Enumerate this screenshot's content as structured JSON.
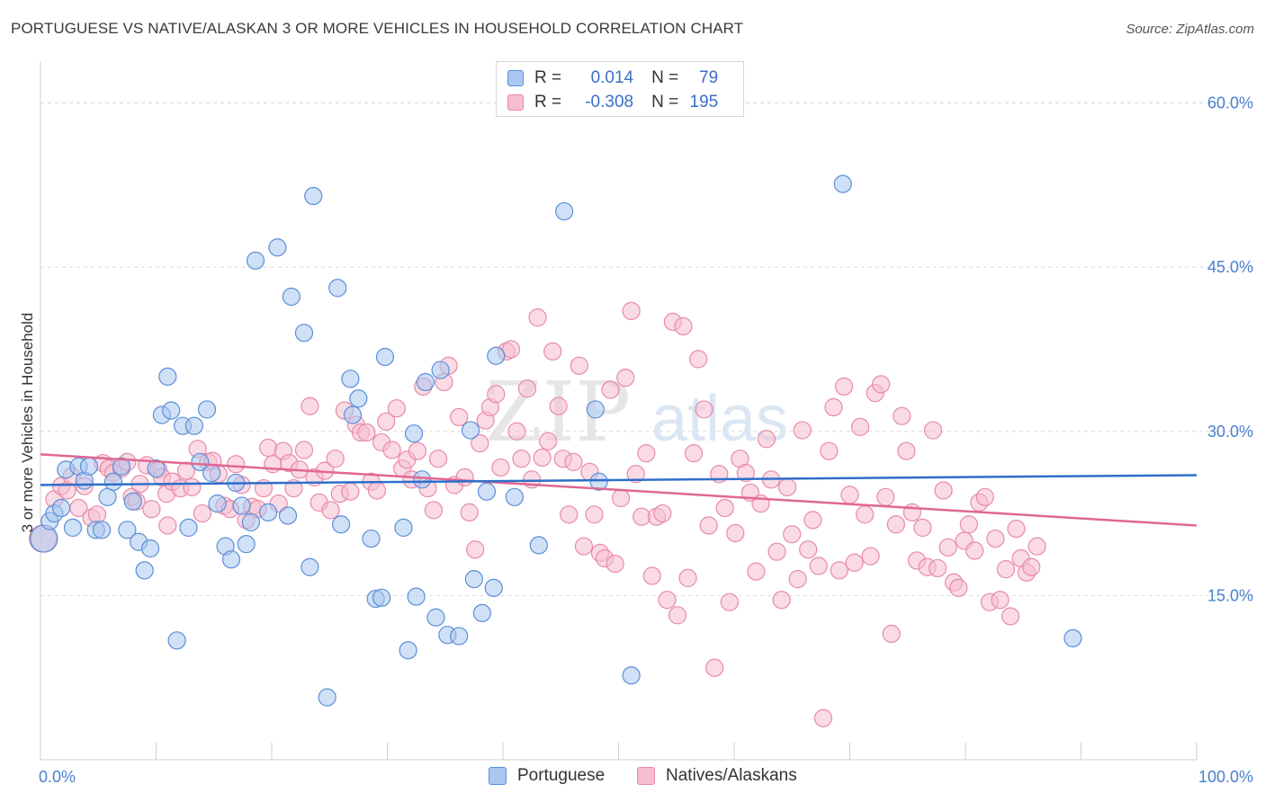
{
  "title": "PORTUGUESE VS NATIVE/ALASKAN 3 OR MORE VEHICLES IN HOUSEHOLD CORRELATION CHART",
  "source": "Source: ZipAtlas.com",
  "watermark": {
    "zip": "ZIP",
    "atlas": "atlas"
  },
  "legend_top": {
    "r_label": "R =",
    "n_label": "N =",
    "rows": [
      {
        "r": "0.014",
        "n": "79",
        "color": "#a9c7f0",
        "border": "#5b8fd6"
      },
      {
        "r": "-0.308",
        "n": "195",
        "color": "#f6bdd0",
        "border": "#e88aa8"
      }
    ]
  },
  "bottom_legend": [
    {
      "label": "Portuguese",
      "color": "#a9c7f0",
      "border": "#5b8fd6"
    },
    {
      "label": "Natives/Alaskans",
      "color": "#f6bdd0",
      "border": "#e88aa8"
    }
  ],
  "colors": {
    "blue_fill": "#a9c7f0",
    "blue_stroke": "#5b8fd6",
    "blue_line": "#2e6fca",
    "pink_fill": "#f6bdd0",
    "pink_stroke": "#e88aa8",
    "pink_line": "#e06892",
    "tick_label": "#4a7fd0",
    "grid": "#d9d9d9"
  },
  "chart_data": {
    "type": "scatter",
    "title": "PORTUGUESE VS NATIVE/ALASKAN 3 OR MORE VEHICLES IN HOUSEHOLD CORRELATION CHART",
    "xlabel": "",
    "ylabel": "3 or more Vehicles in Household",
    "xlim": [
      0,
      100
    ],
    "ylim": [
      0,
      63
    ],
    "x_tick_labels": [
      "0.0%",
      "100.0%"
    ],
    "y_ticks": [
      15,
      30,
      45,
      60
    ],
    "y_tick_labels": [
      "15.0%",
      "30.0%",
      "45.0%",
      "60.0%"
    ],
    "grid": "horizontal dashed",
    "legend_position": "top-center",
    "series": [
      {
        "name": "Portuguese",
        "r": 0.014,
        "n": 79,
        "trend": {
          "x": [
            0,
            100
          ],
          "y": [
            25.1,
            26.0
          ]
        },
        "points": [
          [
            0.3,
            20.2
          ],
          [
            0.8,
            21.8
          ],
          [
            1.2,
            22.5
          ],
          [
            1.8,
            23.0
          ],
          [
            2.2,
            26.5
          ],
          [
            2.8,
            21.2
          ],
          [
            3.3,
            26.8
          ],
          [
            3.8,
            25.5
          ],
          [
            4.2,
            26.8
          ],
          [
            4.8,
            21.0
          ],
          [
            5.3,
            21.0
          ],
          [
            5.8,
            24.0
          ],
          [
            6.3,
            25.4
          ],
          [
            7.0,
            26.8
          ],
          [
            7.5,
            21.0
          ],
          [
            8.0,
            23.6
          ],
          [
            8.5,
            19.9
          ],
          [
            9.0,
            17.3
          ],
          [
            9.5,
            19.3
          ],
          [
            10.0,
            26.6
          ],
          [
            10.5,
            31.5
          ],
          [
            11.0,
            35.0
          ],
          [
            11.3,
            31.9
          ],
          [
            11.8,
            10.9
          ],
          [
            12.3,
            30.5
          ],
          [
            12.8,
            21.2
          ],
          [
            13.3,
            30.5
          ],
          [
            13.8,
            27.2
          ],
          [
            14.4,
            32.0
          ],
          [
            14.8,
            26.2
          ],
          [
            15.3,
            23.4
          ],
          [
            16.0,
            19.5
          ],
          [
            16.5,
            18.3
          ],
          [
            16.9,
            25.3
          ],
          [
            17.4,
            23.2
          ],
          [
            17.8,
            19.7
          ],
          [
            18.2,
            21.7
          ],
          [
            18.6,
            45.6
          ],
          [
            19.7,
            22.6
          ],
          [
            20.5,
            46.8
          ],
          [
            21.4,
            22.3
          ],
          [
            21.7,
            42.3
          ],
          [
            22.8,
            39.0
          ],
          [
            23.3,
            17.6
          ],
          [
            23.6,
            51.5
          ],
          [
            24.8,
            5.7
          ],
          [
            25.7,
            43.1
          ],
          [
            26.0,
            21.5
          ],
          [
            26.8,
            34.8
          ],
          [
            27.0,
            31.5
          ],
          [
            27.5,
            33.0
          ],
          [
            28.6,
            20.2
          ],
          [
            29.0,
            14.7
          ],
          [
            29.5,
            14.8
          ],
          [
            29.8,
            36.8
          ],
          [
            31.4,
            21.2
          ],
          [
            31.8,
            10.0
          ],
          [
            32.3,
            29.8
          ],
          [
            32.5,
            14.9
          ],
          [
            33.0,
            25.6
          ],
          [
            33.3,
            34.5
          ],
          [
            34.2,
            13.0
          ],
          [
            34.6,
            35.6
          ],
          [
            35.2,
            11.4
          ],
          [
            36.2,
            11.3
          ],
          [
            37.2,
            30.1
          ],
          [
            37.5,
            16.5
          ],
          [
            38.2,
            13.4
          ],
          [
            38.6,
            24.5
          ],
          [
            39.2,
            15.7
          ],
          [
            39.4,
            36.9
          ],
          [
            41.0,
            24.0
          ],
          [
            43.1,
            19.6
          ],
          [
            45.3,
            50.1
          ],
          [
            48.0,
            32.0
          ],
          [
            48.3,
            25.4
          ],
          [
            51.1,
            7.7
          ],
          [
            69.4,
            52.6
          ],
          [
            89.3,
            11.1
          ]
        ]
      },
      {
        "name": "Natives/Alaskans",
        "r": -0.308,
        "n": 195,
        "trend": {
          "x": [
            0,
            100
          ],
          "y": [
            27.9,
            21.4
          ]
        },
        "points": [
          [
            0.2,
            20.2
          ],
          [
            1.2,
            23.8
          ],
          [
            1.8,
            25.0
          ],
          [
            2.3,
            24.6
          ],
          [
            2.7,
            25.9
          ],
          [
            3.3,
            23.0
          ],
          [
            3.8,
            25.0
          ],
          [
            4.4,
            22.1
          ],
          [
            4.9,
            22.4
          ],
          [
            5.4,
            27.1
          ],
          [
            5.9,
            26.6
          ],
          [
            6.3,
            26.2
          ],
          [
            7.0,
            26.6
          ],
          [
            7.5,
            27.2
          ],
          [
            7.9,
            24.0
          ],
          [
            8.3,
            23.6
          ],
          [
            8.6,
            25.2
          ],
          [
            9.2,
            26.9
          ],
          [
            9.6,
            22.9
          ],
          [
            10.2,
            26.5
          ],
          [
            10.5,
            25.8
          ],
          [
            10.9,
            24.3
          ],
          [
            11.0,
            21.4
          ],
          [
            11.4,
            25.4
          ],
          [
            12.1,
            24.8
          ],
          [
            12.6,
            26.4
          ],
          [
            13.1,
            24.9
          ],
          [
            13.6,
            28.4
          ],
          [
            14.0,
            22.5
          ],
          [
            14.5,
            27.2
          ],
          [
            14.9,
            27.3
          ],
          [
            15.4,
            26.1
          ],
          [
            15.9,
            23.2
          ],
          [
            16.4,
            22.9
          ],
          [
            16.9,
            27.0
          ],
          [
            17.4,
            25.1
          ],
          [
            17.8,
            21.9
          ],
          [
            18.3,
            23.1
          ],
          [
            18.8,
            22.9
          ],
          [
            19.3,
            24.8
          ],
          [
            19.7,
            28.5
          ],
          [
            20.1,
            27.0
          ],
          [
            20.6,
            23.4
          ],
          [
            21.0,
            28.2
          ],
          [
            21.5,
            27.1
          ],
          [
            21.9,
            24.8
          ],
          [
            22.4,
            26.5
          ],
          [
            22.8,
            28.3
          ],
          [
            23.3,
            32.3
          ],
          [
            23.7,
            25.8
          ],
          [
            24.1,
            23.5
          ],
          [
            24.6,
            26.4
          ],
          [
            25.1,
            22.8
          ],
          [
            25.5,
            27.5
          ],
          [
            25.9,
            24.3
          ],
          [
            26.3,
            31.9
          ],
          [
            26.8,
            24.5
          ],
          [
            27.3,
            30.6
          ],
          [
            27.7,
            29.9
          ],
          [
            28.2,
            29.9
          ],
          [
            28.6,
            25.4
          ],
          [
            29.1,
            24.6
          ],
          [
            29.5,
            29.0
          ],
          [
            29.9,
            30.9
          ],
          [
            30.4,
            28.3
          ],
          [
            30.8,
            32.1
          ],
          [
            31.3,
            26.6
          ],
          [
            31.7,
            27.4
          ],
          [
            32.1,
            25.6
          ],
          [
            32.6,
            28.2
          ],
          [
            33.1,
            34.1
          ],
          [
            33.5,
            24.8
          ],
          [
            34.0,
            22.8
          ],
          [
            34.4,
            27.5
          ],
          [
            34.9,
            34.5
          ],
          [
            35.3,
            36.0
          ],
          [
            35.8,
            25.1
          ],
          [
            36.2,
            31.3
          ],
          [
            36.7,
            25.8
          ],
          [
            37.1,
            22.6
          ],
          [
            37.6,
            19.2
          ],
          [
            38.0,
            28.9
          ],
          [
            38.5,
            31.0
          ],
          [
            38.9,
            32.2
          ],
          [
            39.4,
            33.4
          ],
          [
            39.8,
            26.7
          ],
          [
            40.3,
            37.3
          ],
          [
            40.7,
            37.5
          ],
          [
            41.2,
            30.0
          ],
          [
            41.6,
            27.5
          ],
          [
            42.1,
            33.9
          ],
          [
            42.5,
            25.6
          ],
          [
            43.0,
            40.4
          ],
          [
            43.4,
            27.6
          ],
          [
            43.9,
            29.1
          ],
          [
            44.3,
            37.3
          ],
          [
            44.8,
            32.3
          ],
          [
            45.2,
            27.5
          ],
          [
            45.7,
            22.4
          ],
          [
            46.1,
            27.2
          ],
          [
            46.6,
            36.0
          ],
          [
            47.0,
            19.5
          ],
          [
            47.5,
            26.3
          ],
          [
            47.9,
            22.4
          ],
          [
            48.4,
            18.9
          ],
          [
            48.8,
            18.4
          ],
          [
            49.3,
            33.8
          ],
          [
            49.7,
            17.9
          ],
          [
            50.2,
            23.9
          ],
          [
            50.6,
            34.9
          ],
          [
            51.1,
            41.0
          ],
          [
            51.5,
            26.1
          ],
          [
            52.0,
            22.2
          ],
          [
            52.4,
            28.0
          ],
          [
            52.9,
            16.8
          ],
          [
            53.3,
            22.2
          ],
          [
            53.8,
            22.5
          ],
          [
            54.2,
            14.6
          ],
          [
            54.7,
            40.0
          ],
          [
            55.1,
            13.2
          ],
          [
            55.6,
            39.6
          ],
          [
            56.0,
            16.6
          ],
          [
            56.5,
            28.0
          ],
          [
            56.9,
            36.6
          ],
          [
            57.4,
            32.0
          ],
          [
            57.8,
            21.4
          ],
          [
            58.3,
            8.4
          ],
          [
            58.7,
            26.1
          ],
          [
            59.2,
            23.0
          ],
          [
            59.6,
            14.4
          ],
          [
            60.1,
            20.7
          ],
          [
            60.5,
            27.5
          ],
          [
            61.0,
            26.2
          ],
          [
            61.4,
            24.4
          ],
          [
            61.9,
            17.2
          ],
          [
            62.3,
            23.4
          ],
          [
            62.8,
            29.3
          ],
          [
            63.2,
            25.6
          ],
          [
            63.7,
            19.0
          ],
          [
            64.1,
            14.6
          ],
          [
            64.6,
            24.9
          ],
          [
            65.0,
            20.6
          ],
          [
            65.5,
            16.5
          ],
          [
            65.9,
            30.1
          ],
          [
            66.4,
            19.2
          ],
          [
            66.8,
            21.9
          ],
          [
            67.3,
            17.7
          ],
          [
            67.7,
            3.8
          ],
          [
            68.2,
            28.2
          ],
          [
            68.6,
            32.2
          ],
          [
            69.1,
            17.3
          ],
          [
            69.5,
            34.1
          ],
          [
            70.0,
            24.2
          ],
          [
            70.4,
            18.0
          ],
          [
            70.9,
            30.4
          ],
          [
            71.3,
            22.4
          ],
          [
            71.8,
            18.6
          ],
          [
            72.2,
            33.5
          ],
          [
            72.7,
            34.3
          ],
          [
            73.1,
            24.0
          ],
          [
            73.6,
            11.5
          ],
          [
            74.0,
            21.5
          ],
          [
            74.5,
            31.4
          ],
          [
            74.9,
            28.2
          ],
          [
            75.4,
            22.6
          ],
          [
            75.8,
            18.2
          ],
          [
            76.3,
            21.2
          ],
          [
            76.7,
            17.6
          ],
          [
            77.2,
            30.1
          ],
          [
            77.6,
            17.5
          ],
          [
            78.1,
            24.6
          ],
          [
            78.5,
            19.4
          ],
          [
            79.0,
            16.2
          ],
          [
            79.4,
            15.7
          ],
          [
            79.9,
            20.0
          ],
          [
            80.3,
            21.5
          ],
          [
            80.8,
            19.1
          ],
          [
            81.2,
            23.5
          ],
          [
            81.7,
            24.0
          ],
          [
            82.1,
            14.4
          ],
          [
            82.6,
            20.2
          ],
          [
            83.0,
            14.6
          ],
          [
            83.5,
            17.4
          ],
          [
            83.9,
            13.1
          ],
          [
            84.4,
            21.1
          ],
          [
            84.8,
            18.4
          ],
          [
            85.3,
            17.1
          ],
          [
            85.7,
            17.6
          ],
          [
            86.2,
            19.5
          ]
        ]
      }
    ]
  }
}
